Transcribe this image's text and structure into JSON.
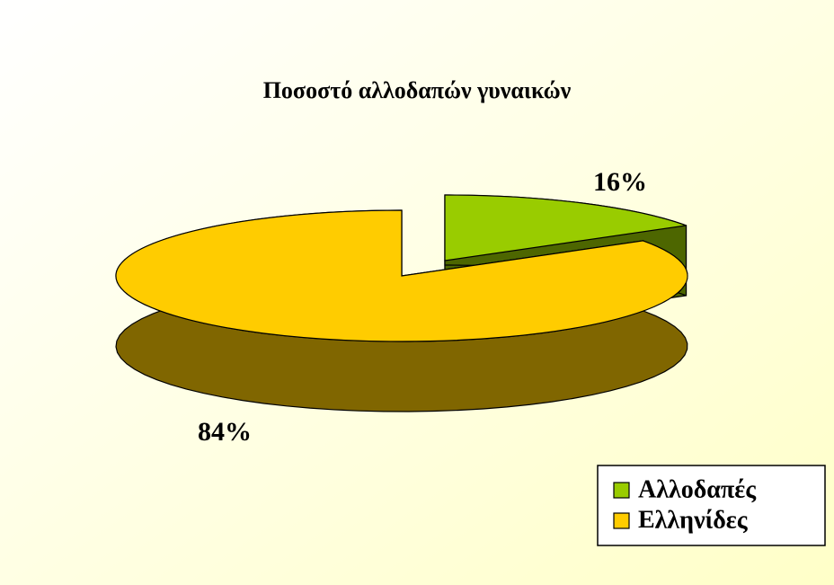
{
  "chart_data": {
    "type": "pie3d",
    "title": "Ποσοστό αλλοδαπών γυναικών",
    "categories": [
      "Αλλοδαπές",
      "Ελληνίδες"
    ],
    "values": [
      16,
      84
    ],
    "value_labels": [
      "16%",
      "84%"
    ],
    "colors": [
      "#99cc00",
      "#ffcc00"
    ],
    "legend": "lower right"
  }
}
